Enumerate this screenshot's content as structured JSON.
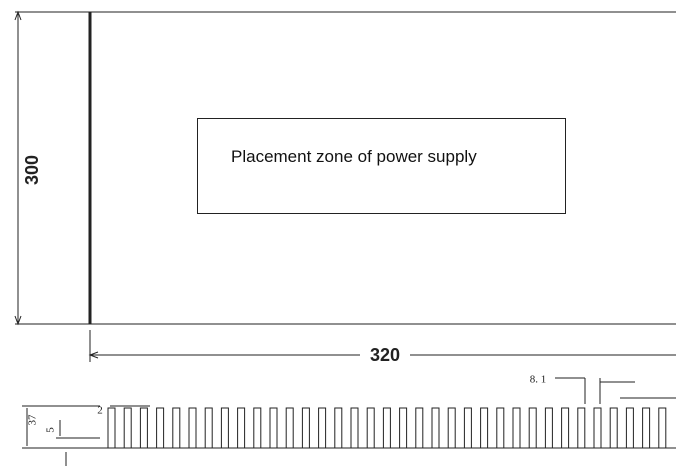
{
  "dimensions": {
    "height": 300,
    "width": 320
  },
  "zone_label": "Placement zone of power supply",
  "profile": {
    "fin_pitch": "8. 1",
    "fin_width": 2,
    "height": 37,
    "base": 5
  }
}
